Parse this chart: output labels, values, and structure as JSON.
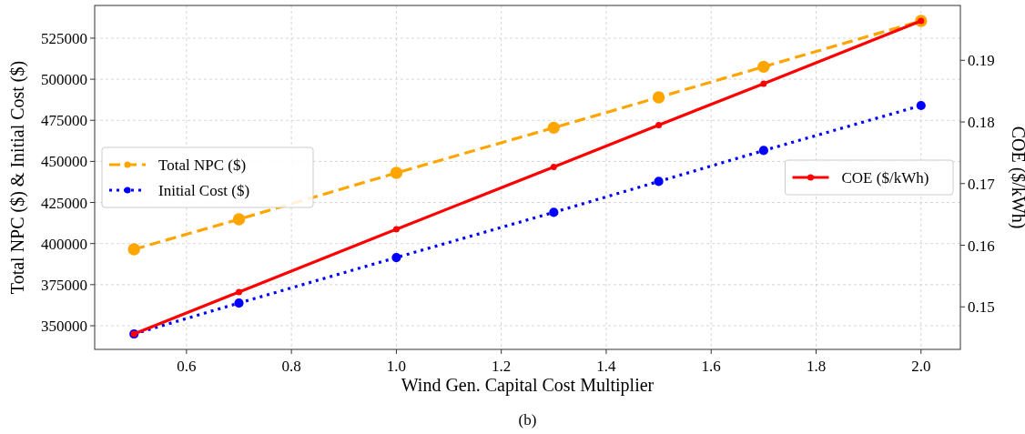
{
  "chart_data": {
    "type": "line",
    "xlabel": "Wind Gen. Capital Cost Multiplier",
    "ylabel": "Total NPC ($) & Initial Cost ($)",
    "y2label": "COE ($/kWh)",
    "annotations": [
      "(b)"
    ],
    "x": [
      0.5,
      0.7,
      1.0,
      1.3,
      1.5,
      1.7,
      2.0
    ],
    "series": [
      {
        "name": "Total NPC ($)",
        "color": "#ffa500",
        "line_style": "dashed",
        "values": [
          396500,
          414800,
          443000,
          470500,
          489000,
          507600,
          535500
        ]
      },
      {
        "name": "Initial Cost ($)",
        "color": "#0000ff",
        "line_style": "dotted",
        "values": [
          345000,
          363800,
          391500,
          419000,
          437800,
          456600,
          484000
        ]
      },
      {
        "name": "COE ($/kWh)",
        "color": "#ff0000",
        "line_style": "solid",
        "axis": "y2",
        "values": [
          0.1456,
          0.1524,
          0.1626,
          0.1727,
          0.1795,
          0.1862,
          0.1964
        ]
      }
    ],
    "xlim": [
      0.425,
      2.075
    ],
    "xticks": [
      {
        "value": 0.6,
        "label": "0.6"
      },
      {
        "value": 0.8,
        "label": "0.8"
      },
      {
        "value": 1.0,
        "label": "1.0"
      },
      {
        "value": 1.2,
        "label": "1.2"
      },
      {
        "value": 1.4,
        "label": "1.4"
      },
      {
        "value": 1.6,
        "label": "1.6"
      },
      {
        "value": 1.8,
        "label": "1.8"
      },
      {
        "value": 2.0,
        "label": "2.0"
      }
    ],
    "ylim": [
      335600,
      544900
    ],
    "yticks": [
      350000,
      375000,
      400000,
      425000,
      450000,
      475000,
      500000,
      525000
    ],
    "y2lim": [
      0.1431,
      0.1989
    ],
    "y2ticks": [
      0.15,
      0.16,
      0.17,
      0.18,
      0.19
    ],
    "grid": true,
    "legend": "left",
    "marker": "circle"
  }
}
